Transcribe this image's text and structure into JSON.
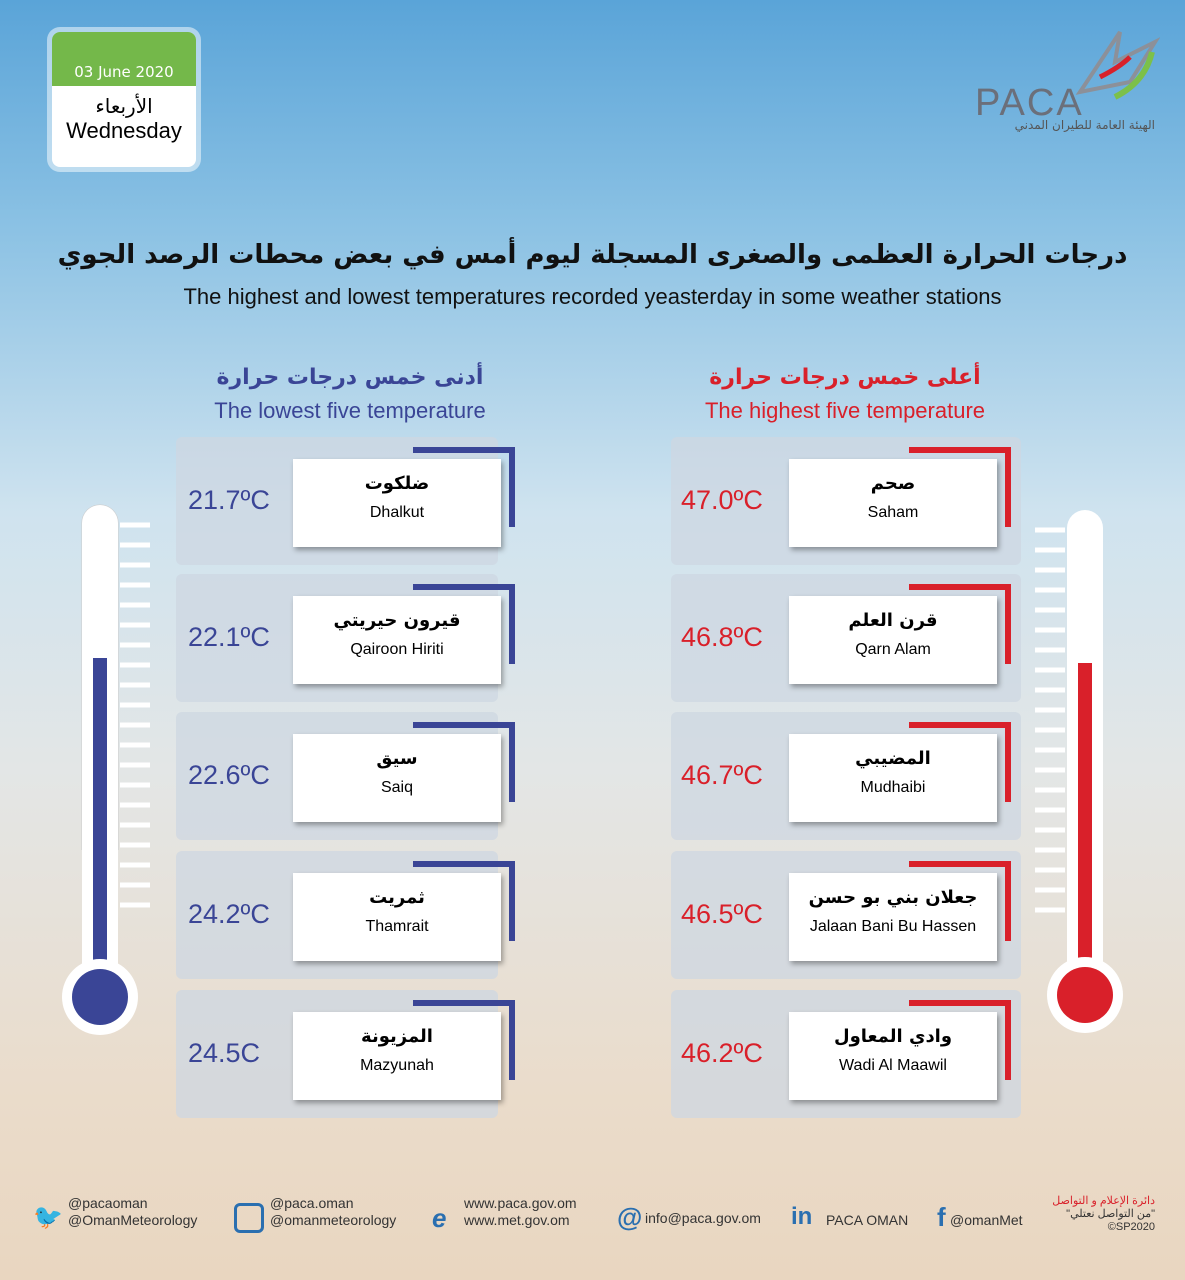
{
  "date": {
    "date": "03 June 2020",
    "day_ar": "الأربعاء",
    "day_en": "Wednesday"
  },
  "logo": {
    "name": "PACA",
    "subtitle": "الهيئة العامة للطيران المدني"
  },
  "header": {
    "title_ar": "درجات الحرارة العظمى والصغرى المسجلة ليوم أمس في بعض محطات الرصد الجوي",
    "title_en": "The highest and lowest temperatures recorded yeasterday in some weather stations"
  },
  "lowest": {
    "title_ar": "أدنى خمس درجات حرارة",
    "title_en": "The lowest five temperature",
    "stations": [
      {
        "name_ar": "ضلكوت",
        "name_en": "Dhalkut",
        "temp": "21.7ºC"
      },
      {
        "name_ar": "قيرون حيريتي",
        "name_en": "Qairoon Hiriti",
        "temp": "22.1ºC"
      },
      {
        "name_ar": "سيق",
        "name_en": "Saiq",
        "temp": "22.6ºC"
      },
      {
        "name_ar": "ثمريت",
        "name_en": "Thamrait",
        "temp": "24.2ºC"
      },
      {
        "name_ar": "المزيونة",
        "name_en": "Mazyunah",
        "temp": "24.5C"
      }
    ]
  },
  "highest": {
    "title_ar": "أعلى خمس درجات حرارة",
    "title_en": "The highest five temperature",
    "stations": [
      {
        "name_ar": "صحم",
        "name_en": "Saham",
        "temp": "47.0ºC"
      },
      {
        "name_ar": "قرن العلم",
        "name_en": "Qarn Alam",
        "temp": "46.8ºC"
      },
      {
        "name_ar": "المضيبي",
        "name_en": "Mudhaibi",
        "temp": "46.7ºC"
      },
      {
        "name_ar": "جعلان بني بو حسن",
        "name_en": "Jalaan Bani Bu Hassen",
        "temp": "46.5ºC"
      },
      {
        "name_ar": "وادي المعاول",
        "name_en": "Wadi Al Maawil",
        "temp": "46.2ºC"
      }
    ]
  },
  "footer": {
    "twitter": [
      "@pacaoman",
      "@OmanMeteorology"
    ],
    "instagram": [
      "@paca.oman",
      "@omanmeteorology"
    ],
    "web": [
      "www.paca.gov.om",
      "www.met.gov.om"
    ],
    "email": "info@paca.gov.om",
    "linkedin": "PACA OMAN",
    "facebook": "@omanMet",
    "department": [
      "دائرة الإعلام و التواصل",
      "\"من التواصل نعتلي\"",
      "©SP2020"
    ]
  }
}
